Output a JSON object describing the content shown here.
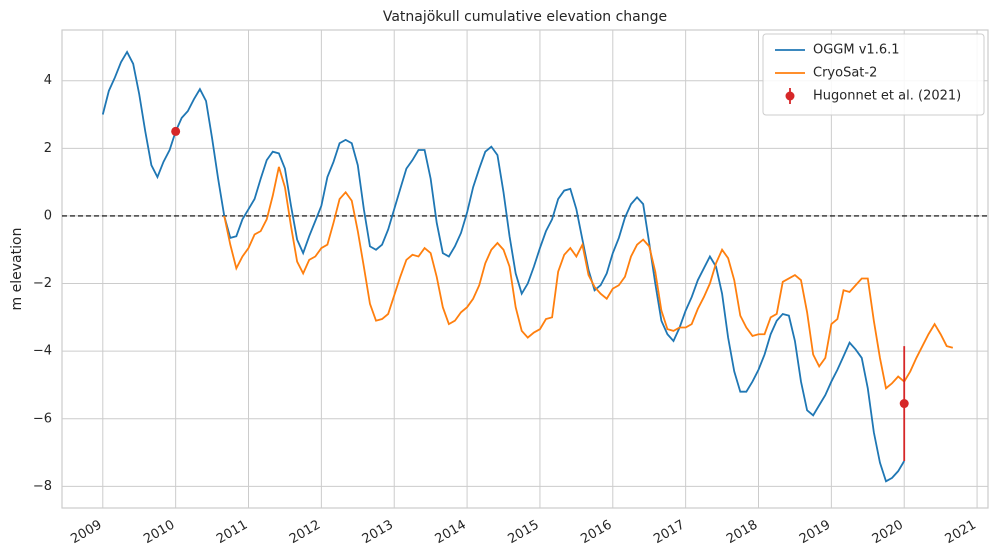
{
  "chart_data": {
    "type": "line",
    "title": "Vatnajökull cumulative elevation change",
    "y_label": "m elevation",
    "xlim": [
      2008.44,
      2021.15
    ],
    "ylim": [
      -8.64,
      5.5
    ],
    "xticks": [
      2009,
      2010,
      2011,
      2012,
      2013,
      2014,
      2015,
      2016,
      2017,
      2018,
      2019,
      2020,
      2021
    ],
    "yticks": [
      {
        "value": -8,
        "label": "−8"
      },
      {
        "value": -6,
        "label": "−6"
      },
      {
        "value": -4,
        "label": "−4"
      },
      {
        "value": -2,
        "label": "−2"
      },
      0,
      2,
      4
    ],
    "grid": true,
    "hline": 0,
    "legend": "upper right",
    "series": [
      {
        "name": "OGGM v1.6.1",
        "color": "#1f77b4",
        "x": [
          2009,
          2009.083,
          2009.167,
          2009.25,
          2009.333,
          2009.417,
          2009.5,
          2009.583,
          2009.667,
          2009.75,
          2009.833,
          2009.917,
          2010,
          2010.083,
          2010.167,
          2010.25,
          2010.333,
          2010.417,
          2010.5,
          2010.583,
          2010.667,
          2010.75,
          2010.833,
          2010.917,
          2011,
          2011.083,
          2011.167,
          2011.25,
          2011.333,
          2011.417,
          2011.5,
          2011.583,
          2011.667,
          2011.75,
          2011.833,
          2011.917,
          2012,
          2012.083,
          2012.167,
          2012.25,
          2012.333,
          2012.417,
          2012.5,
          2012.583,
          2012.667,
          2012.75,
          2012.833,
          2012.917,
          2013,
          2013.083,
          2013.167,
          2013.25,
          2013.333,
          2013.417,
          2013.5,
          2013.583,
          2013.667,
          2013.75,
          2013.833,
          2013.917,
          2014,
          2014.083,
          2014.167,
          2014.25,
          2014.333,
          2014.417,
          2014.5,
          2014.583,
          2014.667,
          2014.75,
          2014.833,
          2014.917,
          2015,
          2015.083,
          2015.167,
          2015.25,
          2015.333,
          2015.417,
          2015.5,
          2015.583,
          2015.667,
          2015.75,
          2015.833,
          2015.917,
          2016,
          2016.083,
          2016.167,
          2016.25,
          2016.333,
          2016.417,
          2016.5,
          2016.583,
          2016.667,
          2016.75,
          2016.833,
          2016.917,
          2017,
          2017.083,
          2017.167,
          2017.25,
          2017.333,
          2017.417,
          2017.5,
          2017.583,
          2017.667,
          2017.75,
          2017.833,
          2017.917,
          2018,
          2018.083,
          2018.167,
          2018.25,
          2018.333,
          2018.417,
          2018.5,
          2018.583,
          2018.667,
          2018.75,
          2018.833,
          2018.917,
          2019,
          2019.083,
          2019.167,
          2019.25,
          2019.333,
          2019.417,
          2019.5,
          2019.583,
          2019.667,
          2019.75,
          2019.833,
          2019.917,
          2020
        ],
        "values": [
          3.0,
          3.7,
          4.1,
          4.55,
          4.85,
          4.5,
          3.6,
          2.5,
          1.5,
          1.15,
          1.6,
          1.95,
          2.5,
          2.9,
          3.1,
          3.45,
          3.75,
          3.4,
          2.3,
          1.1,
          0.0,
          -0.65,
          -0.6,
          -0.1,
          0.2,
          0.5,
          1.1,
          1.65,
          1.9,
          1.85,
          1.4,
          0.3,
          -0.7,
          -1.1,
          -0.6,
          -0.15,
          0.3,
          1.15,
          1.6,
          2.15,
          2.25,
          2.15,
          1.5,
          0.2,
          -0.9,
          -1.0,
          -0.85,
          -0.4,
          0.2,
          0.8,
          1.4,
          1.65,
          1.95,
          1.95,
          1.1,
          -0.2,
          -1.1,
          -1.2,
          -0.9,
          -0.5,
          0.1,
          0.85,
          1.4,
          1.9,
          2.05,
          1.8,
          0.7,
          -0.6,
          -1.7,
          -2.3,
          -2.0,
          -1.5,
          -0.95,
          -0.45,
          -0.1,
          0.5,
          0.75,
          0.8,
          0.2,
          -0.7,
          -1.6,
          -2.2,
          -2.05,
          -1.7,
          -1.1,
          -0.65,
          -0.05,
          0.35,
          0.55,
          0.35,
          -0.8,
          -2.0,
          -3.1,
          -3.5,
          -3.7,
          -3.3,
          -2.8,
          -2.4,
          -1.9,
          -1.55,
          -1.2,
          -1.5,
          -2.3,
          -3.6,
          -4.6,
          -5.2,
          -5.2,
          -4.9,
          -4.55,
          -4.1,
          -3.5,
          -3.1,
          -2.9,
          -2.95,
          -3.7,
          -4.9,
          -5.75,
          -5.9,
          -5.6,
          -5.3,
          -4.9,
          -4.55,
          -4.15,
          -3.75,
          -3.95,
          -4.2,
          -5.1,
          -6.4,
          -7.3,
          -7.85,
          -7.75,
          -7.55,
          -7.25
        ]
      },
      {
        "name": "CryoSat-2",
        "color": "#ff7f0e",
        "x": [
          2010.667,
          2010.75,
          2010.833,
          2010.917,
          2011,
          2011.083,
          2011.167,
          2011.25,
          2011.333,
          2011.417,
          2011.5,
          2011.583,
          2011.667,
          2011.75,
          2011.833,
          2011.917,
          2012,
          2012.083,
          2012.167,
          2012.25,
          2012.333,
          2012.417,
          2012.5,
          2012.583,
          2012.667,
          2012.75,
          2012.833,
          2012.917,
          2013,
          2013.083,
          2013.167,
          2013.25,
          2013.333,
          2013.417,
          2013.5,
          2013.583,
          2013.667,
          2013.75,
          2013.833,
          2013.917,
          2014,
          2014.083,
          2014.167,
          2014.25,
          2014.333,
          2014.417,
          2014.5,
          2014.583,
          2014.667,
          2014.75,
          2014.833,
          2014.917,
          2015,
          2015.083,
          2015.167,
          2015.25,
          2015.333,
          2015.417,
          2015.5,
          2015.583,
          2015.667,
          2015.75,
          2015.833,
          2015.917,
          2016,
          2016.083,
          2016.167,
          2016.25,
          2016.333,
          2016.417,
          2016.5,
          2016.583,
          2016.667,
          2016.75,
          2016.833,
          2016.917,
          2017,
          2017.083,
          2017.167,
          2017.25,
          2017.333,
          2017.417,
          2017.5,
          2017.583,
          2017.667,
          2017.75,
          2017.833,
          2017.917,
          2018,
          2018.083,
          2018.167,
          2018.25,
          2018.333,
          2018.417,
          2018.5,
          2018.583,
          2018.667,
          2018.75,
          2018.833,
          2018.917,
          2019,
          2019.083,
          2019.167,
          2019.25,
          2019.333,
          2019.417,
          2019.5,
          2019.583,
          2019.667,
          2019.75,
          2019.833,
          2019.917,
          2020,
          2020.083,
          2020.167,
          2020.25,
          2020.333,
          2020.417,
          2020.5,
          2020.583,
          2020.667
        ],
        "values": [
          0.0,
          -0.85,
          -1.55,
          -1.2,
          -0.95,
          -0.55,
          -0.45,
          -0.1,
          0.6,
          1.45,
          0.85,
          -0.3,
          -1.35,
          -1.7,
          -1.3,
          -1.2,
          -0.95,
          -0.85,
          -0.2,
          0.5,
          0.7,
          0.45,
          -0.45,
          -1.5,
          -2.6,
          -3.1,
          -3.05,
          -2.9,
          -2.35,
          -1.8,
          -1.3,
          -1.15,
          -1.2,
          -0.95,
          -1.1,
          -1.8,
          -2.7,
          -3.2,
          -3.1,
          -2.85,
          -2.7,
          -2.45,
          -2.05,
          -1.4,
          -1.0,
          -0.8,
          -1.0,
          -1.5,
          -2.7,
          -3.4,
          -3.6,
          -3.45,
          -3.35,
          -3.05,
          -3.0,
          -1.65,
          -1.15,
          -0.95,
          -1.2,
          -0.85,
          -1.75,
          -2.1,
          -2.3,
          -2.45,
          -2.15,
          -2.05,
          -1.8,
          -1.2,
          -0.85,
          -0.7,
          -0.9,
          -1.65,
          -2.8,
          -3.35,
          -3.4,
          -3.3,
          -3.3,
          -3.2,
          -2.75,
          -2.4,
          -2.0,
          -1.4,
          -1.0,
          -1.25,
          -1.9,
          -2.95,
          -3.3,
          -3.55,
          -3.5,
          -3.5,
          -3.0,
          -2.9,
          -1.95,
          -1.85,
          -1.75,
          -1.9,
          -2.85,
          -4.1,
          -4.45,
          -4.2,
          -3.2,
          -3.05,
          -2.2,
          -2.25,
          -2.05,
          -1.85,
          -1.85,
          -3.1,
          -4.2,
          -5.1,
          -4.95,
          -4.75,
          -4.9,
          -4.6,
          -4.2,
          -3.85,
          -3.5,
          -3.2,
          -3.5,
          -3.85,
          -3.9
        ]
      },
      {
        "name": "Hugonnet et al. (2021)",
        "color": "#d62728",
        "type": "errorbar",
        "x": [
          2010,
          2020
        ],
        "values": [
          2.5,
          -5.55
        ],
        "errors": [
          0.1,
          1.7
        ]
      }
    ]
  }
}
